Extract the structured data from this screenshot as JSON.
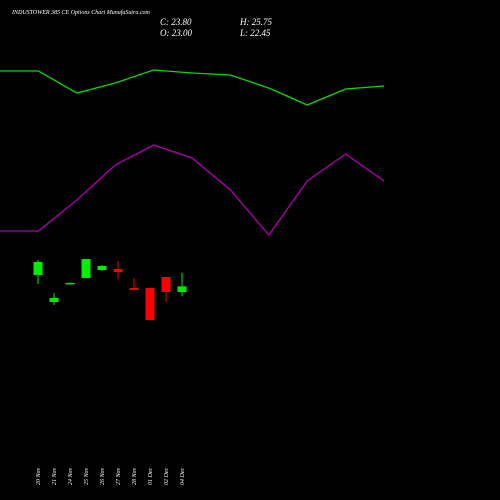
{
  "chart_data": [
    {
      "type": "candlestick",
      "title": "INDUSTOWER 385 CE Options  Chart MunafaSutra.com",
      "summary": [
        "C: 23.80",
        "H: 25.75",
        "O: 23.00",
        "L: 22.45"
      ],
      "categories": [
        "20 Nov",
        "21 Nov",
        "24 Nov",
        "25 Nov",
        "26 Nov",
        "27 Nov",
        "28 Nov",
        "01 Dec",
        "02 Dec",
        "04 Dec"
      ],
      "open": [
        25.43,
        21.57,
        24.2,
        25.0,
        26.14,
        26.29,
        23.57,
        23.57,
        25.14,
        23.0
      ],
      "high": [
        27.57,
        22.86,
        24.3,
        27.71,
        26.86,
        27.43,
        25.0,
        23.57,
        25.14,
        25.75
      ],
      "low": [
        24.14,
        21.14,
        24.2,
        25.0,
        26.0,
        24.86,
        23.29,
        19.0,
        21.57,
        22.45
      ],
      "close": [
        27.29,
        22.14,
        24.3,
        27.71,
        26.71,
        25.86,
        23.29,
        19.0,
        23.0,
        23.8
      ],
      "up_color": "#00ee00",
      "down_color": "#ff0000",
      "ylim": [
        0,
        60
      ]
    },
    {
      "type": "line",
      "series": [
        {
          "color": "#00dd00",
          "values": [
            90.95,
            90.95,
            85.71,
            88.1,
            91.19,
            90.48,
            90.0,
            86.9,
            82.86,
            86.67,
            87.38
          ]
        },
        {
          "color": "#b000b0",
          "values": [
            52.86,
            52.86,
            60.24,
            68.57,
            73.33,
            70.24,
            62.62,
            51.9,
            64.76,
            71.19,
            64.76
          ]
        }
      ],
      "ylim": [
        0,
        100
      ]
    }
  ]
}
